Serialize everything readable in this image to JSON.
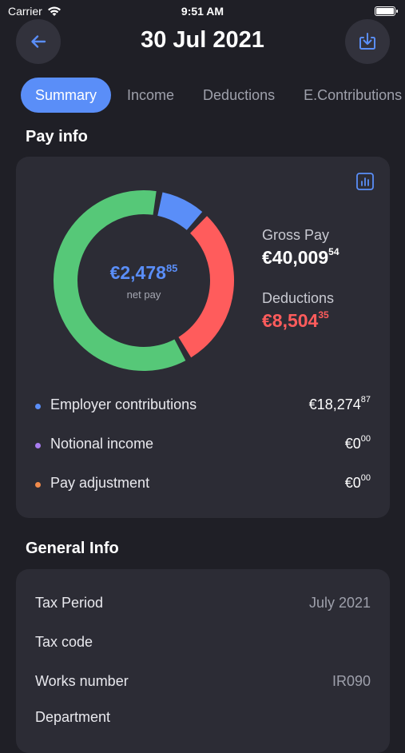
{
  "status_bar": {
    "carrier": "Carrier",
    "time": "9:51 AM"
  },
  "header": {
    "title": "30 Jul 2021",
    "back_icon": "arrow-left-icon",
    "download_icon": "download-icon"
  },
  "tabs": [
    {
      "label": "Summary",
      "active": true
    },
    {
      "label": "Income",
      "active": false
    },
    {
      "label": "Deductions",
      "active": false
    },
    {
      "label": "E.Contributions",
      "active": false
    }
  ],
  "pay_info": {
    "title": "Pay info",
    "net_pay": {
      "main": "€2,478",
      "cents": "85",
      "label": "net pay"
    },
    "gross_pay": {
      "label": "Gross Pay",
      "main": "€40,009",
      "cents": "54"
    },
    "deductions": {
      "label": "Deductions",
      "main": "€8,504",
      "cents": "35"
    },
    "donut_segments": [
      {
        "name": "employer-contributions",
        "color": "#5a8ef8",
        "fraction": 0.09
      },
      {
        "name": "deductions",
        "color": "#ff5c5c",
        "fraction": 0.3
      },
      {
        "name": "net-pay",
        "color": "#56c878",
        "fraction": 0.61
      }
    ],
    "legend": [
      {
        "label": "Employer contributions",
        "main": "€18,274",
        "cents": "87",
        "color": "#5a8ef8"
      },
      {
        "label": "Notional income",
        "main": "€0",
        "cents": "00",
        "color": "#a97cf0"
      },
      {
        "label": "Pay adjustment",
        "main": "€0",
        "cents": "00",
        "color": "#f08a4b"
      }
    ]
  },
  "general_info": {
    "title": "General Info",
    "rows": [
      {
        "label": "Tax Period",
        "value": "July 2021"
      },
      {
        "label": "Tax code",
        "value": ""
      },
      {
        "label": "Works number",
        "value": "IR090"
      },
      {
        "label": "Department",
        "value": ""
      }
    ]
  }
}
